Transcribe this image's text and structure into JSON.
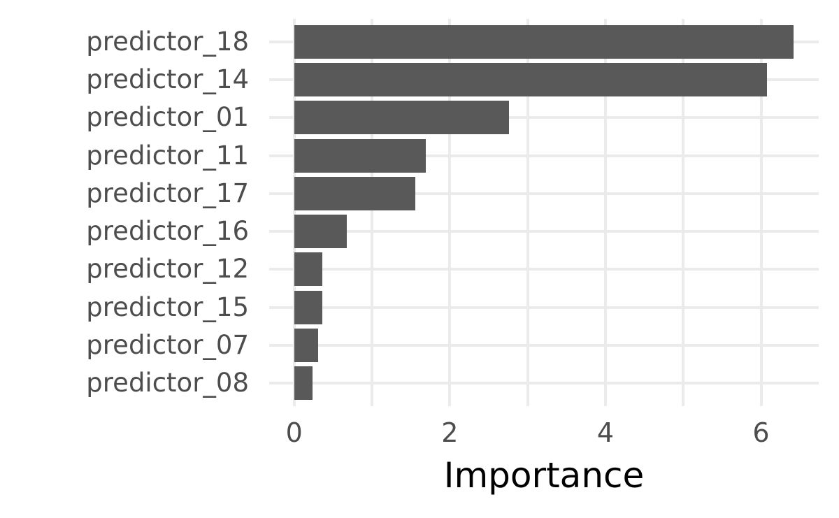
{
  "chart_data": {
    "type": "bar",
    "orientation": "horizontal",
    "title": "",
    "xlabel": "Importance",
    "ylabel": "",
    "categories": [
      "predictor_18",
      "predictor_14",
      "predictor_01",
      "predictor_11",
      "predictor_17",
      "predictor_16",
      "predictor_12",
      "predictor_15",
      "predictor_07",
      "predictor_08"
    ],
    "values": [
      6.42,
      6.08,
      2.76,
      1.69,
      1.56,
      0.68,
      0.36,
      0.36,
      0.31,
      0.24
    ],
    "xlim": [
      0,
      6.42
    ],
    "x_major_ticks": [
      0,
      2,
      4,
      6
    ],
    "x_minor_ticks": [
      1,
      3,
      5
    ],
    "grid": "on",
    "legend": "none",
    "bar_color": "#595959",
    "grid_color": "#EBEBEB",
    "tick_label_color": "#4D4D4D",
    "axis_title_color": "#000000",
    "background_color": "#FFFFFF"
  }
}
